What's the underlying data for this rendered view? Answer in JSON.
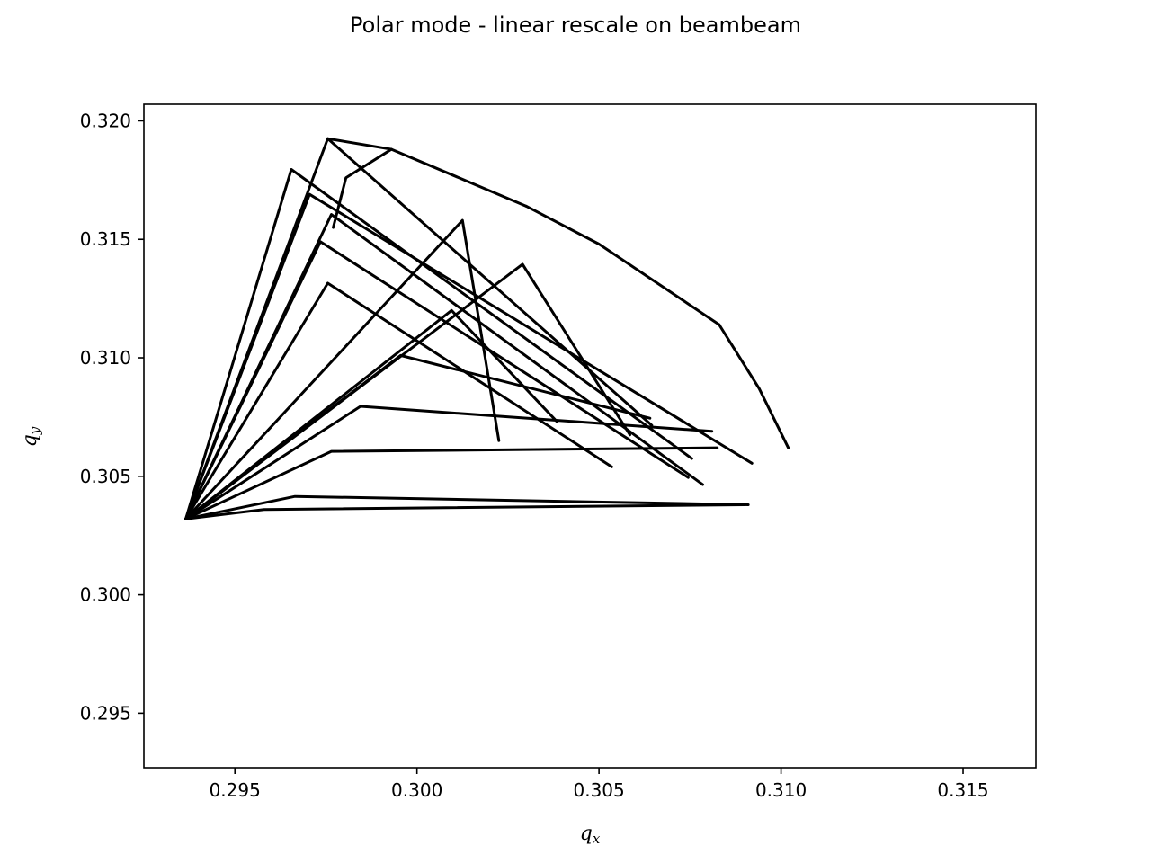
{
  "chart_data": {
    "type": "line",
    "title": "Polar mode - linear rescale on beambeam",
    "xlabel": "q_x",
    "ylabel": "q_y",
    "xlim": [
      0.2925,
      0.317
    ],
    "ylim": [
      0.2927,
      0.3207
    ],
    "xticks": [
      0.295,
      0.3,
      0.305,
      0.31,
      0.315
    ],
    "yticks": [
      0.295,
      0.3,
      0.305,
      0.31,
      0.315,
      0.32
    ],
    "xtick_labels": [
      "0.295",
      "0.300",
      "0.305",
      "0.310",
      "0.315"
    ],
    "ytick_labels": [
      "0.295",
      "0.300",
      "0.305",
      "0.310",
      "0.315",
      "0.320"
    ],
    "grid": false,
    "line_color": "#000000",
    "description": "Tune-footprint mesh: radial lines and amplitude rings",
    "series": [
      {
        "values": [
          [
            0.29365,
            0.3032
          ],
          [
            0.29755,
            0.31925
          ],
          [
            0.30645,
            0.30715
          ]
        ]
      },
      {
        "values": [
          [
            0.29365,
            0.3032
          ],
          [
            0.29655,
            0.31795
          ],
          [
            0.30755,
            0.30575
          ]
        ]
      },
      {
        "values": [
          [
            0.29365,
            0.3032
          ],
          [
            0.29705,
            0.3169
          ],
          [
            0.3092,
            0.30555
          ]
        ]
      },
      {
        "values": [
          [
            0.29365,
            0.3032
          ],
          [
            0.29765,
            0.31605
          ],
          [
            0.30785,
            0.30465
          ]
        ]
      },
      {
        "values": [
          [
            0.29365,
            0.3032
          ],
          [
            0.29735,
            0.3149
          ],
          [
            0.30745,
            0.30495
          ]
        ]
      },
      {
        "values": [
          [
            0.29365,
            0.3032
          ],
          [
            0.29755,
            0.31315
          ],
          [
            0.30535,
            0.3054
          ]
        ]
      },
      {
        "values": [
          [
            0.29365,
            0.3032
          ],
          [
            0.30125,
            0.3158
          ],
          [
            0.30225,
            0.3065
          ]
        ]
      },
      {
        "values": [
          [
            0.29365,
            0.3032
          ],
          [
            0.3029,
            0.31395
          ],
          [
            0.30585,
            0.30675
          ]
        ]
      },
      {
        "values": [
          [
            0.29365,
            0.3032
          ],
          [
            0.30095,
            0.312
          ],
          [
            0.30385,
            0.3073
          ]
        ]
      },
      {
        "values": [
          [
            0.29365,
            0.3032
          ],
          [
            0.29955,
            0.3101
          ],
          [
            0.3064,
            0.30745
          ]
        ]
      },
      {
        "values": [
          [
            0.29365,
            0.3032
          ],
          [
            0.29845,
            0.30795
          ],
          [
            0.3081,
            0.3069
          ]
        ]
      },
      {
        "values": [
          [
            0.29365,
            0.3032
          ],
          [
            0.29765,
            0.30605
          ],
          [
            0.30825,
            0.3062
          ]
        ]
      },
      {
        "values": [
          [
            0.29365,
            0.3032
          ],
          [
            0.29665,
            0.30415
          ],
          [
            0.3091,
            0.3038
          ]
        ]
      },
      {
        "values": [
          [
            0.29365,
            0.3032
          ],
          [
            0.2958,
            0.3036
          ],
          [
            0.309,
            0.3038
          ]
        ]
      },
      {
        "values": [
          [
            0.29755,
            0.31925
          ],
          [
            0.2993,
            0.3188
          ],
          [
            0.303,
            0.3164
          ]
        ]
      },
      {
        "values": [
          [
            0.303,
            0.3164
          ],
          [
            0.305,
            0.3148
          ],
          [
            0.3083,
            0.3114
          ]
        ]
      },
      {
        "values": [
          [
            0.3083,
            0.3114
          ],
          [
            0.3094,
            0.3087
          ],
          [
            0.3102,
            0.3062
          ]
        ]
      },
      {
        "values": [
          [
            0.2993,
            0.3188
          ],
          [
            0.29805,
            0.3176
          ],
          [
            0.2977,
            0.3155
          ]
        ]
      }
    ]
  }
}
